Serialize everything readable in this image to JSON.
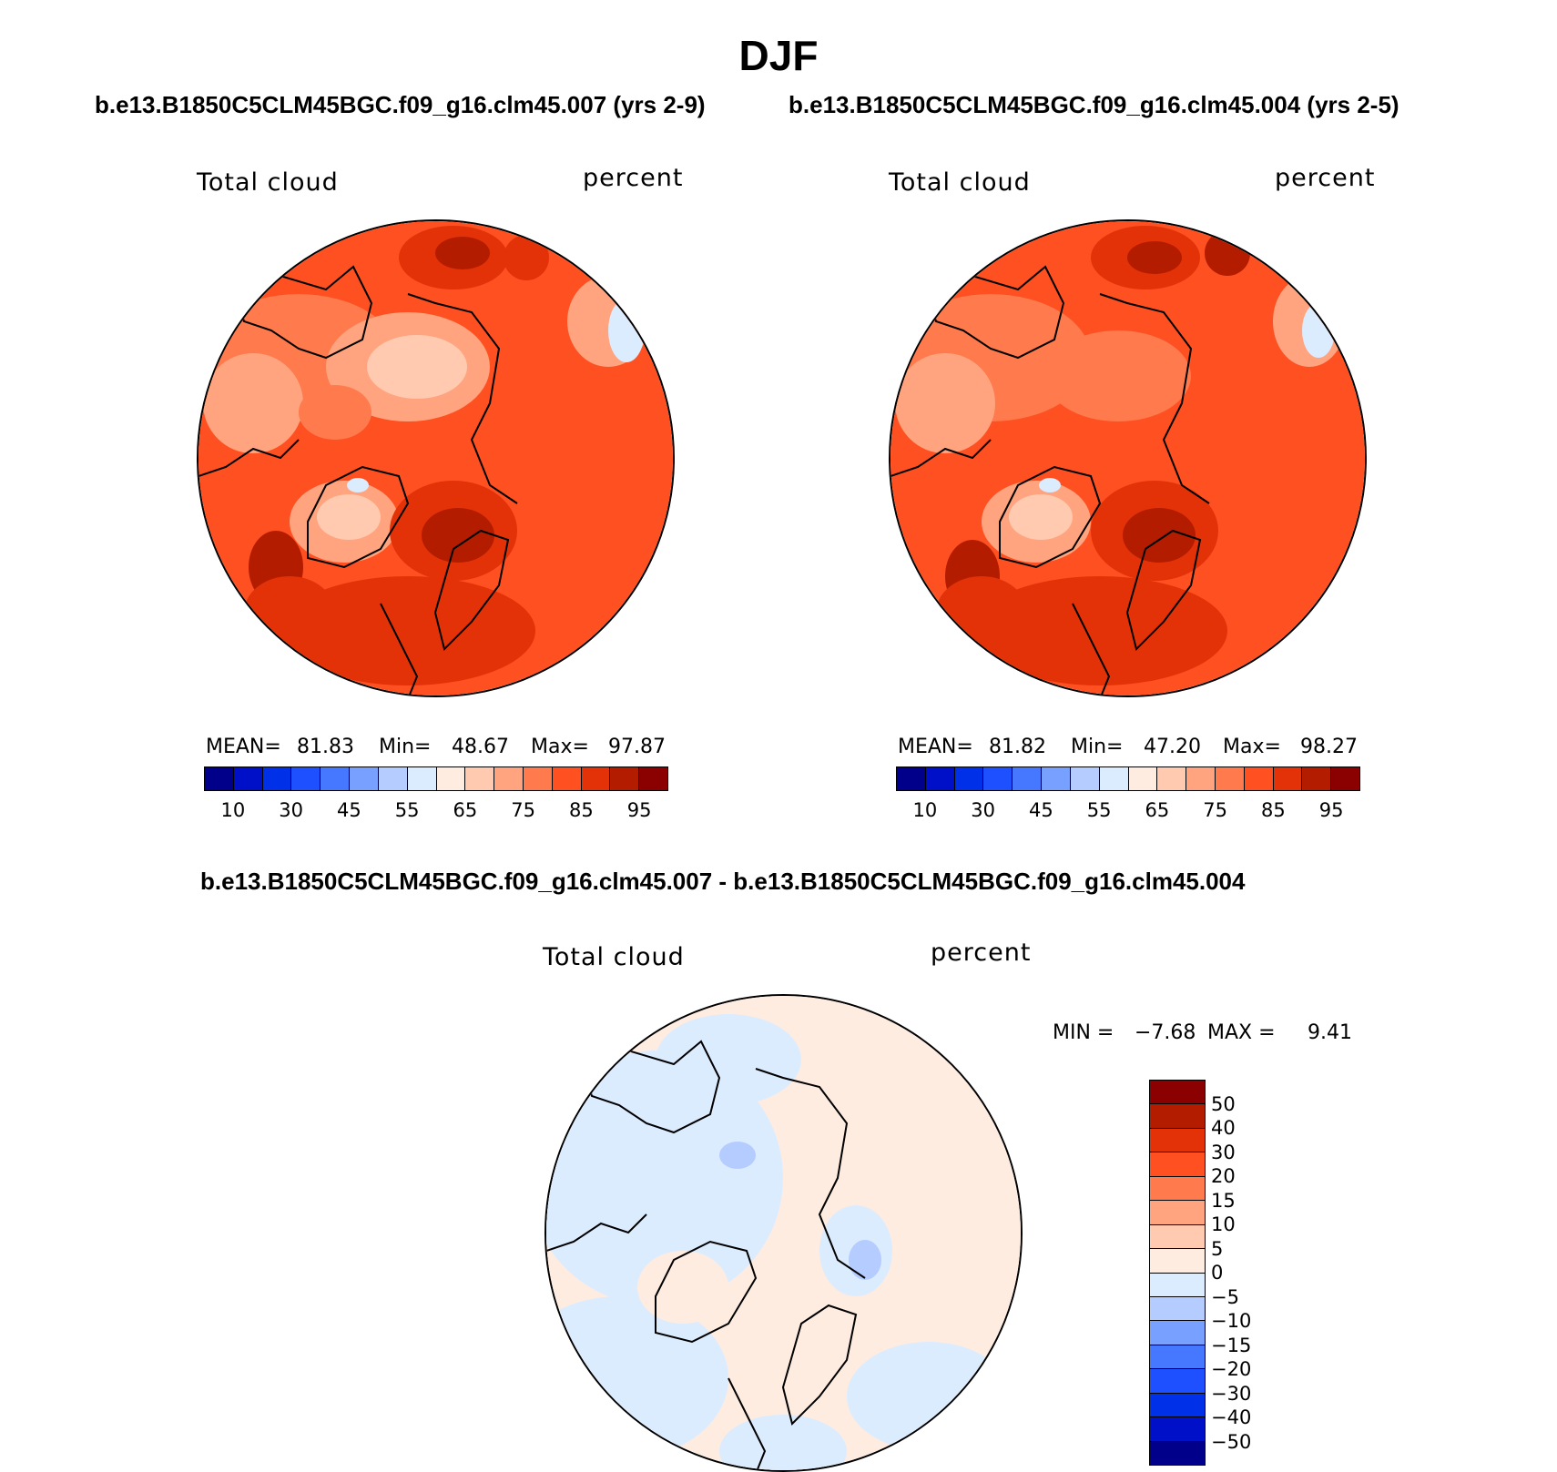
{
  "title": "DJF",
  "panels": {
    "left": {
      "subtitle": "b.e13.B1850C5CLM45BGC.f09_g16.clm45.007 (yrs 2-9)",
      "variable": "Total cloud",
      "units": "percent",
      "mean_label": "MEAN=",
      "mean": "81.83",
      "min_label": "Min=",
      "min": "48.67",
      "max_label": "Max=",
      "max": "97.87"
    },
    "right": {
      "subtitle": "b.e13.B1850C5CLM45BGC.f09_g16.clm45.004 (yrs 2-5)",
      "variable": "Total cloud",
      "units": "percent",
      "mean_label": "MEAN=",
      "mean": "81.82",
      "min_label": "Min=",
      "min": "47.20",
      "max_label": "Max=",
      "max": "98.27"
    },
    "diff": {
      "subtitle": "b.e13.B1850C5CLM45BGC.f09_g16.clm45.007 - b.e13.B1850C5CLM45BGC.f09_g16.clm45.004",
      "variable": "Total cloud",
      "units": "percent",
      "min_label": "MIN =",
      "min": "−7.68",
      "max_label": "MAX =",
      "max": "9.41"
    }
  },
  "colorbar_abs": {
    "colors": [
      "#00008b",
      "#0010c8",
      "#0030e8",
      "#1e50ff",
      "#4678ff",
      "#78a0ff",
      "#b4ccff",
      "#dcecff",
      "#ffece0",
      "#ffcab0",
      "#ffa47e",
      "#ff7a4c",
      "#ff5022",
      "#e43208",
      "#b41c00",
      "#8b0000"
    ],
    "labels": [
      "10",
      "30",
      "45",
      "55",
      "65",
      "75",
      "85",
      "95"
    ]
  },
  "colorbar_diff": {
    "colors": [
      "#8b0000",
      "#b41c00",
      "#e43208",
      "#ff5022",
      "#ff7a4c",
      "#ffa47e",
      "#ffcab0",
      "#ffece0",
      "#dcecff",
      "#b4ccff",
      "#78a0ff",
      "#4678ff",
      "#1e50ff",
      "#0030e8",
      "#0010c8",
      "#00008b"
    ],
    "labels": [
      "50",
      "40",
      "30",
      "20",
      "15",
      "10",
      "5",
      "0",
      "−5",
      "−10",
      "−15",
      "−20",
      "−30",
      "−40",
      "−50"
    ]
  }
}
